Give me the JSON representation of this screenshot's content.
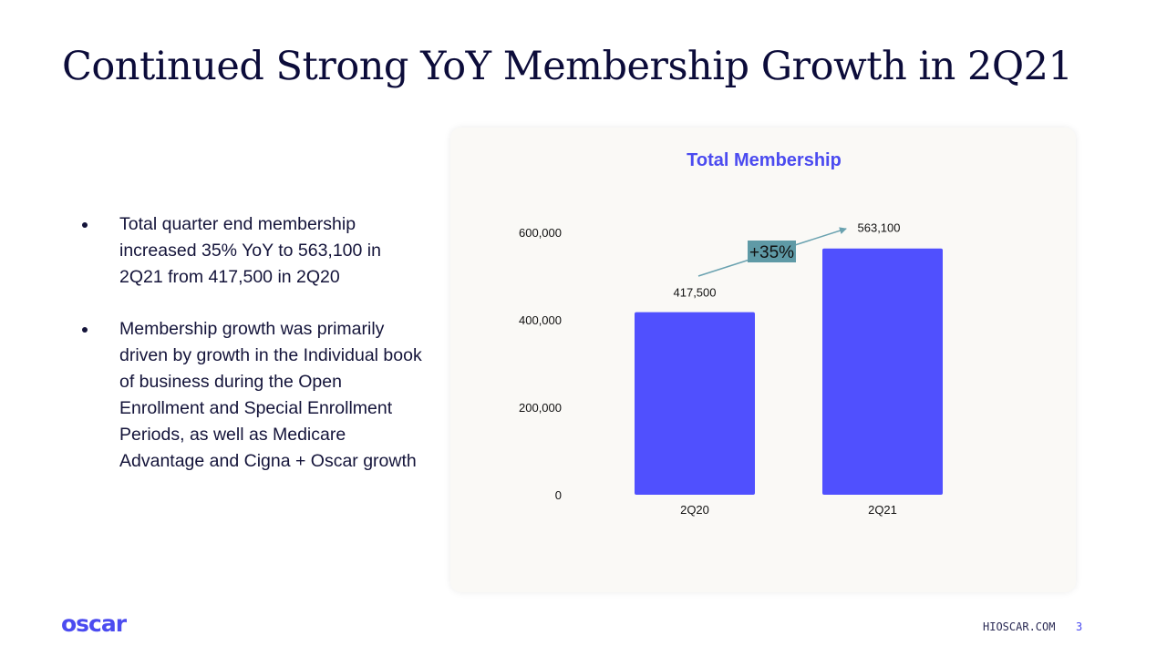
{
  "slide": {
    "title": "Continued Strong YoY Membership Growth in 2Q21",
    "bullets": [
      "Total quarter end membership increased 35% YoY to 563,100 in 2Q21 from 417,500 in 2Q20",
      "Membership growth was primarily driven by growth in the Individual book of business during the Open Enrollment and Special Enrollment Periods, as well as Medicare Advantage and Cigna + Oscar growth"
    ],
    "logo_text": "oscar",
    "footer_url": "HIOSCAR.COM",
    "page_number": "3"
  },
  "colors": {
    "bar": "#5050fe",
    "title_accent": "#4b4bf0",
    "yoy_box": "#5f9aa6",
    "arrow": "#6aa2b0",
    "footer_accent": "#4b4bf0"
  },
  "chart_data": {
    "type": "bar",
    "title": "Total Membership",
    "categories": [
      "2Q20",
      "2Q21"
    ],
    "values": [
      417500,
      563100
    ],
    "data_labels": [
      "417,500",
      "563,100"
    ],
    "ylim": [
      0,
      600000
    ],
    "yticks": [
      0,
      200000,
      400000,
      600000
    ],
    "ytick_labels": [
      "0",
      "200,000",
      "400,000",
      "600,000"
    ],
    "annotation": "+35%",
    "grid": false,
    "legend": "none"
  }
}
